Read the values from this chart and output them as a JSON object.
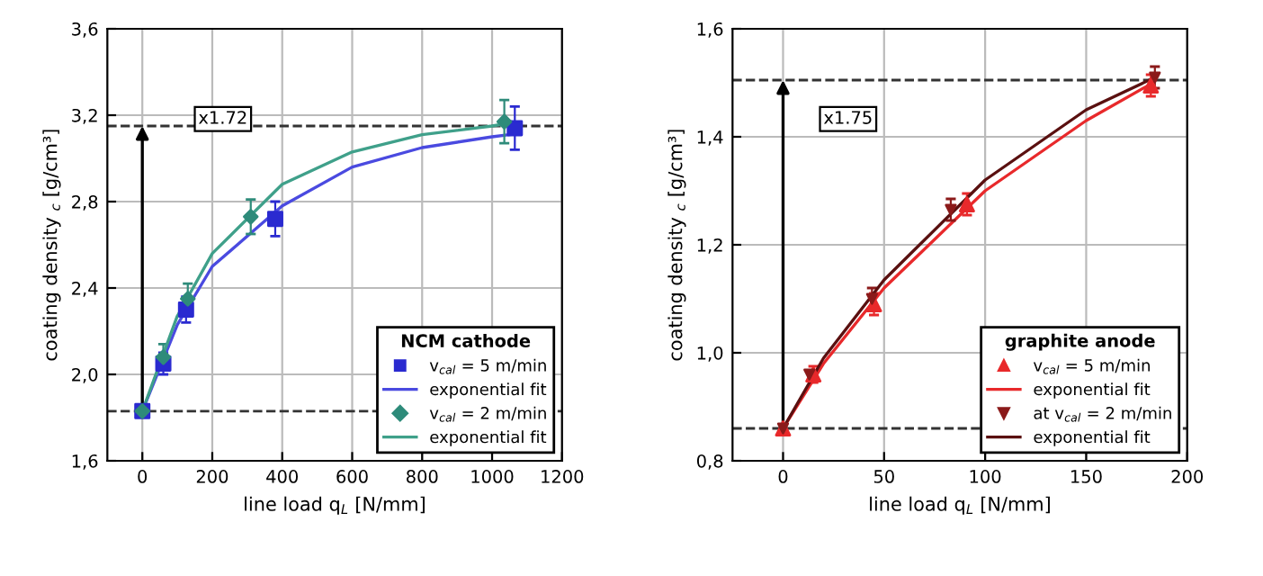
{
  "chart_data": [
    {
      "type": "scatter",
      "xlabel": "line load q$_{L}$ [N/mm]",
      "ylabel": "coating density $_{c}$ [g/cm³]",
      "legend_title": "NCM cathode",
      "legend": "bottom right",
      "grid": true,
      "xlim": [
        -100,
        1200
      ],
      "xticks": [
        0,
        200,
        400,
        600,
        800,
        1000,
        1200
      ],
      "ylim": [
        1.6,
        3.6
      ],
      "yticks": [
        {
          "value": 1.6,
          "label": "1,6"
        },
        {
          "value": 2.0,
          "label": "2,0"
        },
        {
          "value": 2.4,
          "label": "2,4"
        },
        {
          "value": 2.8,
          "label": "2,8"
        },
        {
          "value": 3.2,
          "label": "3,2"
        },
        {
          "value": 3.6,
          "label": "3,6"
        }
      ],
      "series": [
        {
          "name": "v$_{cal}$ = 5 m/min",
          "marker": "square",
          "color": "#2a2ad0",
          "x": [
            0,
            60,
            125,
            380,
            1065
          ],
          "values": [
            1.83,
            2.05,
            2.3,
            2.72,
            3.14
          ],
          "errors": [
            null,
            0.05,
            0.06,
            0.08,
            0.1
          ]
        },
        {
          "name": "exponential fit",
          "type": "line",
          "color": "#4a4ae0",
          "x": [
            0,
            100,
            200,
            400,
            600,
            800,
            1000,
            1050
          ],
          "values": [
            1.83,
            2.23,
            2.5,
            2.78,
            2.96,
            3.05,
            3.1,
            3.11
          ]
        },
        {
          "name": "v$_{cal}$ = 2 m/min",
          "marker": "diamond",
          "color": "#2e8b7a",
          "x": [
            0,
            60,
            130,
            310,
            1035
          ],
          "values": [
            1.83,
            2.08,
            2.35,
            2.73,
            3.17
          ],
          "errors": [
            null,
            0.06,
            0.07,
            0.08,
            0.1
          ]
        },
        {
          "name": "exponential fit",
          "type": "line",
          "color": "#3fa08a",
          "x": [
            0,
            100,
            200,
            400,
            600,
            800,
            1000,
            1035
          ],
          "values": [
            1.83,
            2.27,
            2.56,
            2.88,
            3.03,
            3.11,
            3.15,
            3.16
          ]
        }
      ],
      "ref_lines": [
        {
          "axis": "y",
          "value": 3.15,
          "line_style": "dashed",
          "color": "#333333"
        },
        {
          "axis": "y",
          "value": 1.83,
          "line_style": "dashed",
          "color": "#333333"
        }
      ],
      "annotations": [
        "x1.72"
      ]
    },
    {
      "type": "scatter",
      "xlabel": "line load q$_{L}$ [N/mm]",
      "ylabel": "coating density $_{c}$ [g/cm³]",
      "legend_title": "graphite anode",
      "legend": "bottom right",
      "grid": true,
      "xlim": [
        -25,
        200
      ],
      "xticks": [
        0,
        50,
        100,
        150,
        200
      ],
      "ylim": [
        0.8,
        1.6
      ],
      "yticks": [
        {
          "value": 0.8,
          "label": "0,8"
        },
        {
          "value": 1.0,
          "label": "1,0"
        },
        {
          "value": 1.2,
          "label": "1,2"
        },
        {
          "value": 1.4,
          "label": "1,4"
        },
        {
          "value": 1.6,
          "label": "1,6"
        }
      ],
      "series": [
        {
          "name": "v$_{cal}$ = 5 m/min",
          "marker": "triangle",
          "color": "#e8292b",
          "x": [
            0,
            15,
            45,
            91,
            182
          ],
          "values": [
            0.86,
            0.96,
            1.09,
            1.275,
            1.495
          ],
          "errors": [
            null,
            0.015,
            0.02,
            0.02,
            0.02
          ]
        },
        {
          "name": "exponential fit",
          "type": "line",
          "color": "#e8292b",
          "x": [
            0,
            20,
            50,
            100,
            150,
            183
          ],
          "values": [
            0.86,
            0.98,
            1.12,
            1.3,
            1.43,
            1.5
          ]
        },
        {
          "name": "at v$_{cal}$ = 2 m/min",
          "marker": "triangle_down",
          "color": "#8b1a1a",
          "x": [
            0,
            13,
            44,
            83,
            184
          ],
          "values": [
            0.86,
            0.96,
            1.1,
            1.265,
            1.51
          ],
          "errors": [
            null,
            null,
            0.02,
            0.02,
            0.02
          ]
        },
        {
          "name": "exponential fit",
          "type": "line",
          "color": "#5a1010",
          "x": [
            0,
            20,
            50,
            100,
            150,
            184
          ],
          "values": [
            0.86,
            0.99,
            1.135,
            1.32,
            1.45,
            1.51
          ]
        }
      ],
      "ref_lines": [
        {
          "axis": "y",
          "value": 1.505,
          "line_style": "dashed",
          "color": "#333333"
        },
        {
          "axis": "y",
          "value": 0.86,
          "line_style": "dashed",
          "color": "#333333"
        }
      ],
      "annotations": [
        "x1.75"
      ]
    }
  ]
}
